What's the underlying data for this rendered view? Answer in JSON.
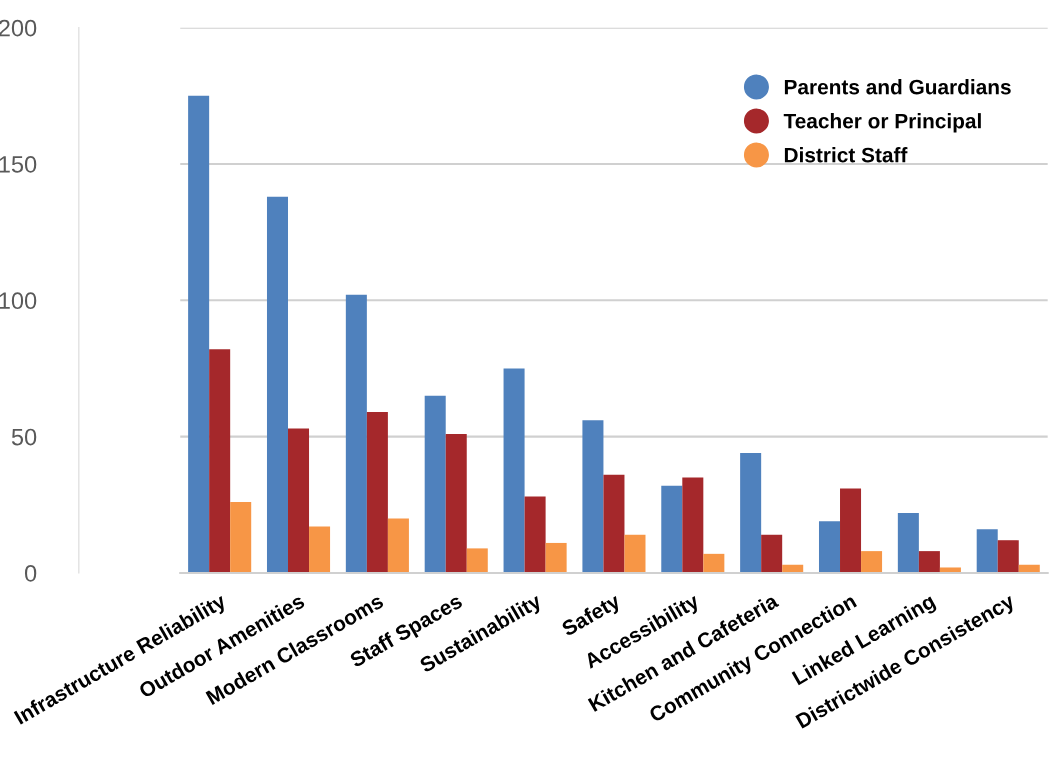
{
  "chart_data": {
    "type": "bar",
    "categories": [
      "Infrastructure Reliability",
      "Outdoor Amenities",
      "Modern Classrooms",
      "Staff Spaces",
      "Sustainability",
      "Safety",
      "Accessibility",
      "Kitchen and Cafeteria",
      "Community Connection",
      "Linked Learning",
      "Districtwide Consistency"
    ],
    "series": [
      {
        "name": "Parents and Guardians",
        "color": "#4f81bd",
        "values": [
          175,
          138,
          102,
          65,
          75,
          56,
          32,
          44,
          19,
          22,
          16
        ]
      },
      {
        "name": "Teacher or Principal",
        "color": "#a5282b",
        "values": [
          82,
          53,
          59,
          51,
          28,
          36,
          35,
          14,
          31,
          8,
          12
        ]
      },
      {
        "name": "District Staff",
        "color": "#f79646",
        "values": [
          26,
          17,
          20,
          9,
          11,
          14,
          7,
          3,
          8,
          2,
          3
        ]
      }
    ],
    "ylim": [
      0,
      200
    ],
    "yticks": [
      0,
      50,
      100,
      150,
      200
    ],
    "grid": "y",
    "legend": "top right",
    "marker": "circle"
  }
}
